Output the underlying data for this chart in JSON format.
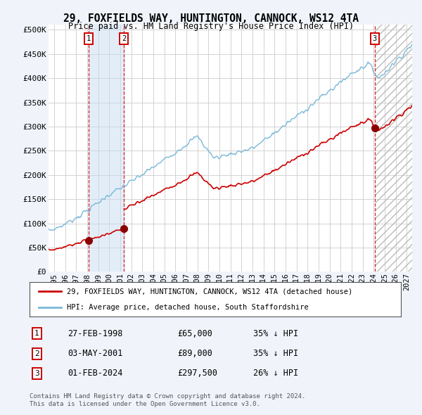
{
  "title_line1": "29, FOXFIELDS WAY, HUNTINGTON, CANNOCK, WS12 4TA",
  "title_line2": "Price paid vs. HM Land Registry's House Price Index (HPI)",
  "ylabel_ticks": [
    "£0",
    "£50K",
    "£100K",
    "£150K",
    "£200K",
    "£250K",
    "£300K",
    "£350K",
    "£400K",
    "£450K",
    "£500K"
  ],
  "ytick_values": [
    0,
    50000,
    100000,
    150000,
    200000,
    250000,
    300000,
    350000,
    400000,
    450000,
    500000
  ],
  "xlim_start": 1994.5,
  "xlim_end": 2027.5,
  "ylim_min": 0,
  "ylim_max": 510000,
  "sale_dates": [
    1998.15,
    2001.34,
    2024.08
  ],
  "sale_prices": [
    65000,
    89000,
    297500
  ],
  "sale_labels": [
    "1",
    "2",
    "3"
  ],
  "hpi_color": "#7ab8d9",
  "price_color": "#cc0000",
  "dot_color": "#8b0000",
  "vline_color": "#cc0000",
  "background_color": "#f0f4fa",
  "plot_bg_color": "#ffffff",
  "grid_color": "#cccccc",
  "legend_line1": "29, FOXFIELDS WAY, HUNTINGTON, CANNOCK, WS12 4TA (detached house)",
  "legend_line2": "HPI: Average price, detached house, South Staffordshire",
  "table_rows": [
    [
      "1",
      "27-FEB-1998",
      "£65,000",
      "35% ↓ HPI"
    ],
    [
      "2",
      "03-MAY-2001",
      "£89,000",
      "35% ↓ HPI"
    ],
    [
      "3",
      "01-FEB-2024",
      "£297,500",
      "26% ↓ HPI"
    ]
  ],
  "footer_text": "Contains HM Land Registry data © Crown copyright and database right 2024.\nThis data is licensed under the Open Government Licence v3.0.",
  "xtick_years": [
    1995,
    1996,
    1997,
    1998,
    1999,
    2000,
    2001,
    2002,
    2003,
    2004,
    2005,
    2006,
    2007,
    2008,
    2009,
    2010,
    2011,
    2012,
    2013,
    2014,
    2015,
    2016,
    2017,
    2018,
    2019,
    2020,
    2021,
    2022,
    2023,
    2024,
    2025,
    2026,
    2027
  ],
  "hpi_ratio_sale1": 0.65,
  "hpi_ratio_sale2": 0.65,
  "hpi_ratio_sale3": 0.74
}
